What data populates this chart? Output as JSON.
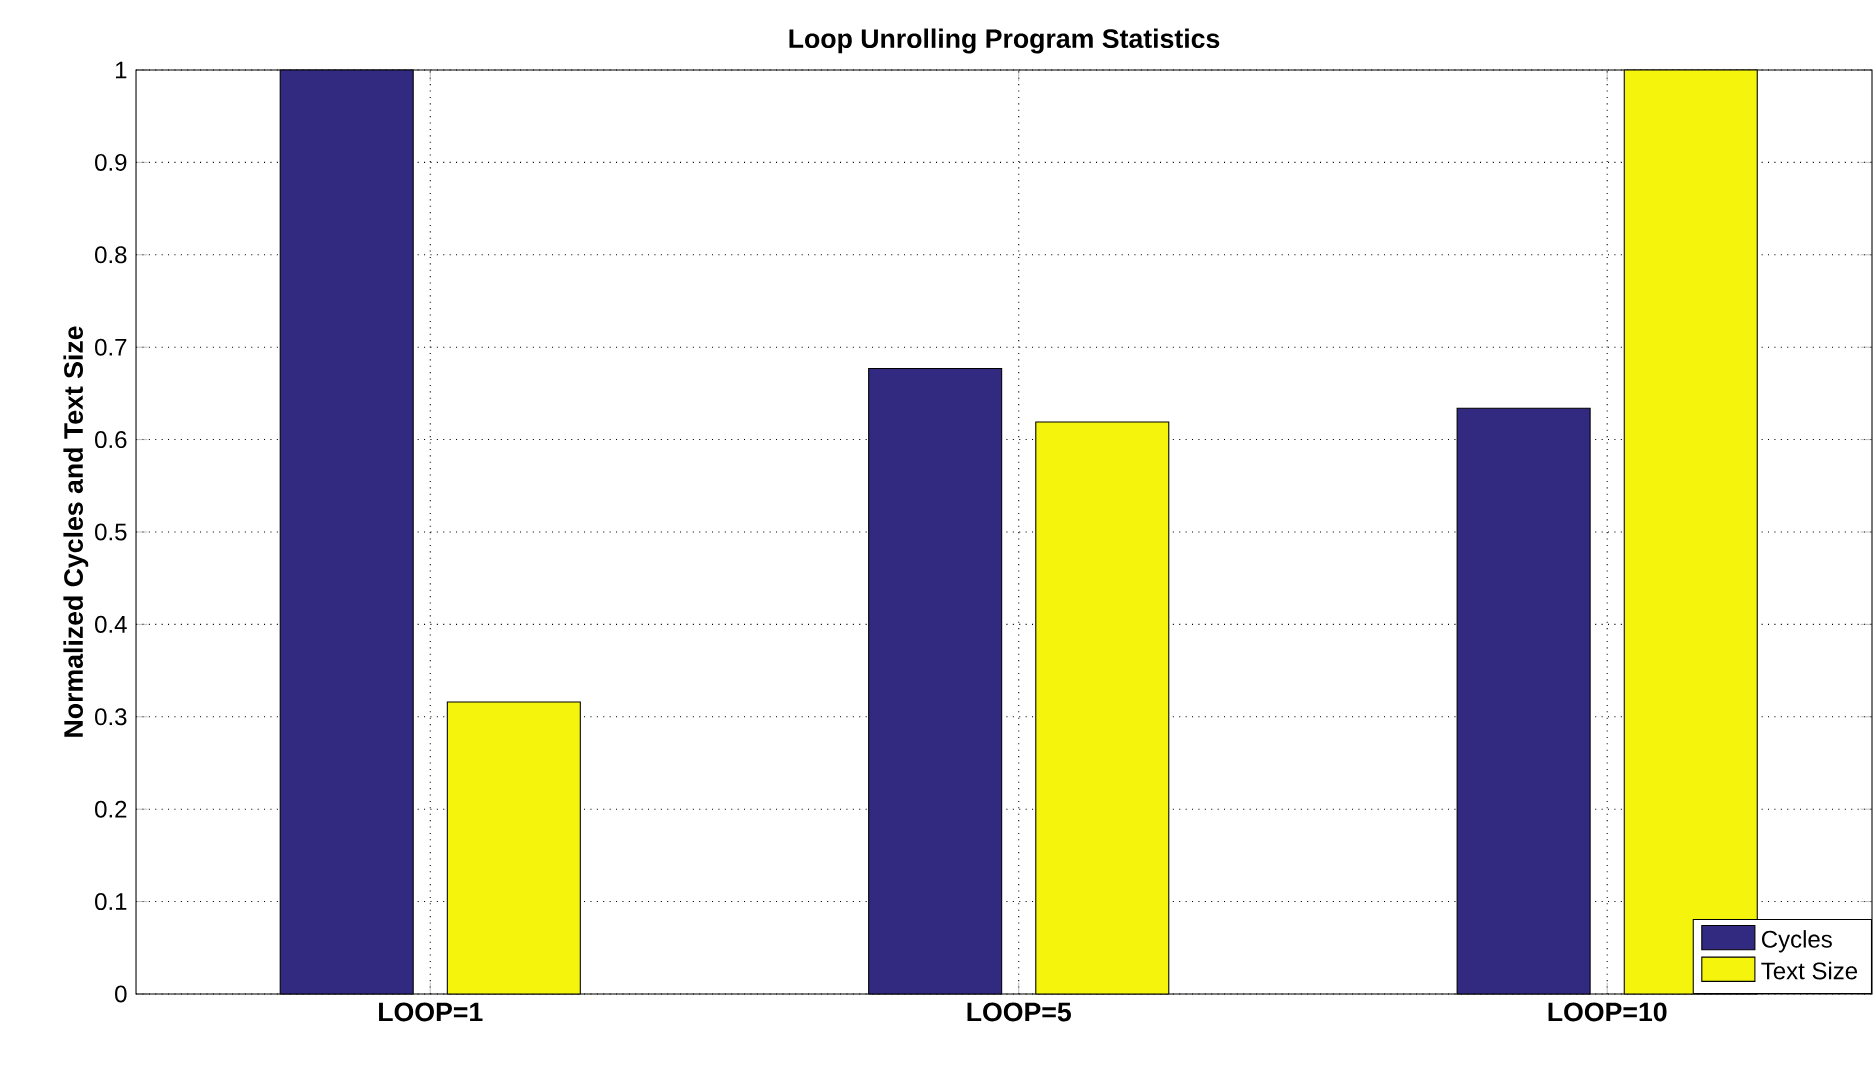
{
  "chart_data": {
    "type": "bar",
    "title": "Loop Unrolling Program Statistics",
    "ylabel": "Normalized Cycles and Text Size",
    "categories": [
      "LOOP=1",
      "LOOP=5",
      "LOOP=10"
    ],
    "series": [
      {
        "name": "Cycles",
        "color": "#312a80",
        "values": [
          1.0,
          0.677,
          0.634
        ]
      },
      {
        "name": "Text Size",
        "color": "#f4f40c",
        "values": [
          0.316,
          0.619,
          1.0
        ]
      }
    ],
    "ylim": [
      0,
      1
    ],
    "yticks": [
      0,
      0.1,
      0.2,
      0.3,
      0.4,
      0.5,
      0.6,
      0.7,
      0.8,
      0.9,
      1
    ],
    "grid": true,
    "legend": "bottom right"
  }
}
